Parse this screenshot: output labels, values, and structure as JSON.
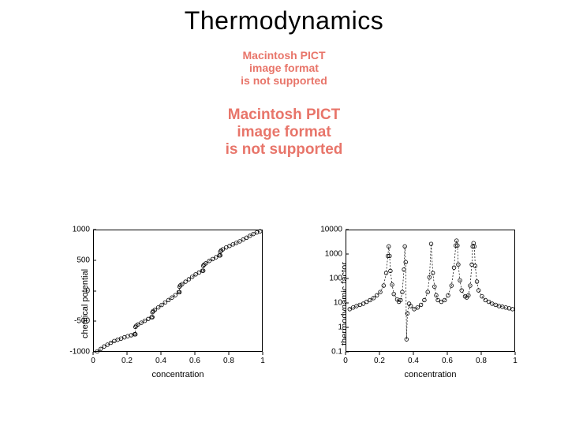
{
  "title": "Thermodynamics",
  "pict_messages": [
    {
      "lines": [
        "Macintosh PICT",
        "image format",
        "is not supported"
      ],
      "fontsize": 14,
      "color": "#e8756a"
    },
    {
      "lines": [
        "Macintosh PICT",
        "image format",
        "is not supported"
      ],
      "fontsize": 19,
      "color": "#e8756a"
    }
  ],
  "left_chart": {
    "type": "scatter-line",
    "xlabel": "concentration",
    "ylabel": "chemical potential",
    "xlim": [
      0,
      1
    ],
    "ylim": [
      -1000,
      1000
    ],
    "xticks": [
      0,
      0.2,
      0.4,
      0.6,
      0.8,
      1
    ],
    "yticks": [
      -1000,
      -500,
      0,
      500,
      1000
    ],
    "yscale": "linear",
    "label_fontsize": 11,
    "tick_fontsize": 10,
    "marker": "circle",
    "marker_size": 2.3,
    "marker_stroke": "#000000",
    "marker_fill": "none",
    "line_style": "dashed",
    "line_color": "#000000",
    "background_color": "#ffffff",
    "border_color": "#000000",
    "data": [
      [
        0.02,
        -980
      ],
      [
        0.04,
        -940
      ],
      [
        0.06,
        -900
      ],
      [
        0.08,
        -870
      ],
      [
        0.1,
        -840
      ],
      [
        0.12,
        -810
      ],
      [
        0.14,
        -790
      ],
      [
        0.16,
        -770
      ],
      [
        0.18,
        -750
      ],
      [
        0.2,
        -730
      ],
      [
        0.22,
        -715
      ],
      [
        0.24,
        -700
      ],
      [
        0.245,
        -700
      ],
      [
        0.245,
        -580
      ],
      [
        0.25,
        -560
      ],
      [
        0.26,
        -540
      ],
      [
        0.28,
        -510
      ],
      [
        0.3,
        -480
      ],
      [
        0.32,
        -450
      ],
      [
        0.34,
        -420
      ],
      [
        0.345,
        -420
      ],
      [
        0.345,
        -340
      ],
      [
        0.35,
        -320
      ],
      [
        0.36,
        -300
      ],
      [
        0.38,
        -260
      ],
      [
        0.4,
        -220
      ],
      [
        0.42,
        -180
      ],
      [
        0.44,
        -140
      ],
      [
        0.46,
        -100
      ],
      [
        0.48,
        -60
      ],
      [
        0.5,
        -10
      ],
      [
        0.505,
        -10
      ],
      [
        0.505,
        80
      ],
      [
        0.51,
        100
      ],
      [
        0.52,
        120
      ],
      [
        0.54,
        160
      ],
      [
        0.56,
        200
      ],
      [
        0.58,
        240
      ],
      [
        0.6,
        280
      ],
      [
        0.62,
        310
      ],
      [
        0.64,
        340
      ],
      [
        0.645,
        340
      ],
      [
        0.645,
        420
      ],
      [
        0.65,
        440
      ],
      [
        0.66,
        460
      ],
      [
        0.68,
        500
      ],
      [
        0.7,
        530
      ],
      [
        0.72,
        560
      ],
      [
        0.74,
        590
      ],
      [
        0.745,
        590
      ],
      [
        0.745,
        650
      ],
      [
        0.75,
        670
      ],
      [
        0.76,
        690
      ],
      [
        0.78,
        720
      ],
      [
        0.8,
        745
      ],
      [
        0.82,
        770
      ],
      [
        0.84,
        795
      ],
      [
        0.86,
        820
      ],
      [
        0.88,
        850
      ],
      [
        0.9,
        880
      ],
      [
        0.92,
        910
      ],
      [
        0.94,
        940
      ],
      [
        0.96,
        965
      ],
      [
        0.98,
        985
      ]
    ]
  },
  "right_chart": {
    "type": "scatter-line",
    "xlabel": "concentration",
    "ylabel": "thermodynamic factor",
    "xlim": [
      0,
      1
    ],
    "ylim": [
      0.1,
      10000
    ],
    "xticks": [
      0,
      0.2,
      0.4,
      0.6,
      0.8,
      1
    ],
    "yticks": [
      0.1,
      1,
      10,
      100,
      1000,
      10000
    ],
    "yscale": "log",
    "label_fontsize": 11,
    "tick_fontsize": 10,
    "marker": "circle",
    "marker_size": 2.3,
    "marker_stroke": "#000000",
    "marker_fill": "none",
    "line_style": "dashed",
    "line_color": "#000000",
    "background_color": "#ffffff",
    "border_color": "#000000",
    "data": [
      [
        0.02,
        6
      ],
      [
        0.04,
        7
      ],
      [
        0.06,
        8
      ],
      [
        0.08,
        9
      ],
      [
        0.1,
        10
      ],
      [
        0.12,
        12
      ],
      [
        0.14,
        14
      ],
      [
        0.16,
        17
      ],
      [
        0.18,
        22
      ],
      [
        0.2,
        30
      ],
      [
        0.22,
        55
      ],
      [
        0.235,
        180
      ],
      [
        0.245,
        900
      ],
      [
        0.25,
        2200
      ],
      [
        0.255,
        900
      ],
      [
        0.26,
        220
      ],
      [
        0.27,
        60
      ],
      [
        0.28,
        25
      ],
      [
        0.3,
        15
      ],
      [
        0.31,
        12
      ],
      [
        0.32,
        14
      ],
      [
        0.33,
        30
      ],
      [
        0.34,
        250
      ],
      [
        0.345,
        2200
      ],
      [
        0.35,
        500
      ],
      [
        0.355,
        0.35
      ],
      [
        0.36,
        4
      ],
      [
        0.37,
        10
      ],
      [
        0.38,
        8
      ],
      [
        0.4,
        6
      ],
      [
        0.42,
        7
      ],
      [
        0.44,
        9
      ],
      [
        0.46,
        14
      ],
      [
        0.48,
        30
      ],
      [
        0.49,
        120
      ],
      [
        0.5,
        2800
      ],
      [
        0.51,
        180
      ],
      [
        0.52,
        50
      ],
      [
        0.53,
        22
      ],
      [
        0.54,
        14
      ],
      [
        0.56,
        12
      ],
      [
        0.58,
        14
      ],
      [
        0.6,
        22
      ],
      [
        0.62,
        55
      ],
      [
        0.635,
        300
      ],
      [
        0.645,
        2400
      ],
      [
        0.65,
        3800
      ],
      [
        0.655,
        2400
      ],
      [
        0.66,
        400
      ],
      [
        0.67,
        90
      ],
      [
        0.68,
        35
      ],
      [
        0.7,
        20
      ],
      [
        0.71,
        18
      ],
      [
        0.72,
        22
      ],
      [
        0.73,
        55
      ],
      [
        0.74,
        400
      ],
      [
        0.745,
        2200
      ],
      [
        0.75,
        3000
      ],
      [
        0.755,
        2200
      ],
      [
        0.76,
        350
      ],
      [
        0.77,
        80
      ],
      [
        0.78,
        35
      ],
      [
        0.8,
        20
      ],
      [
        0.82,
        14
      ],
      [
        0.84,
        12
      ],
      [
        0.86,
        10
      ],
      [
        0.88,
        9
      ],
      [
        0.9,
        8
      ],
      [
        0.92,
        7.5
      ],
      [
        0.94,
        7
      ],
      [
        0.96,
        6.5
      ],
      [
        0.98,
        6
      ]
    ]
  }
}
